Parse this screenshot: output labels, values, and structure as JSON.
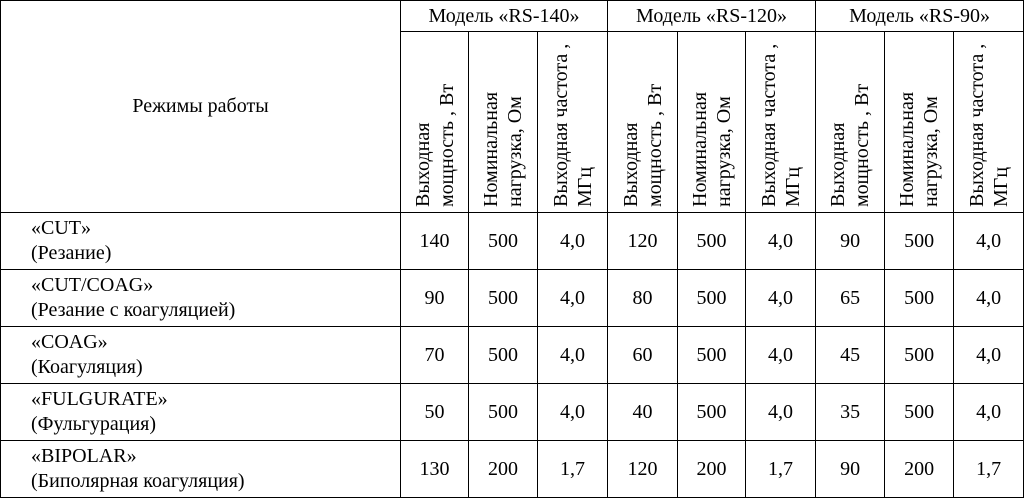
{
  "header": {
    "corner": "Режимы работы",
    "models": [
      "Модель «RS-140»",
      "Модель «RS-120»",
      "Модель «RS-90»"
    ],
    "columns": [
      "Выходная мощность , Вт",
      "Номинальная нагрузка, Ом",
      "Выходная частота , МГц"
    ]
  },
  "rows": [
    {
      "name": "«CUT»",
      "desc": "(Резание)",
      "values": [
        "140",
        "500",
        "4,0",
        "120",
        "500",
        "4,0",
        "90",
        "500",
        "4,0"
      ]
    },
    {
      "name": "«CUT/COAG»",
      "desc": "(Резание с коагуляцией)",
      "values": [
        "90",
        "500",
        "4,0",
        "80",
        "500",
        "4,0",
        "65",
        "500",
        "4,0"
      ]
    },
    {
      "name": "«COAG»",
      "desc": "(Коагуляция)",
      "values": [
        "70",
        "500",
        "4,0",
        "60",
        "500",
        "4,0",
        "45",
        "500",
        "4,0"
      ]
    },
    {
      "name": "«FULGURATE»",
      "desc": "(Фульгурация)",
      "values": [
        "50",
        "500",
        "4,0",
        "40",
        "500",
        "4,0",
        "35",
        "500",
        "4,0"
      ]
    },
    {
      "name": "«BIPOLAR»",
      "desc": "(Биполярная коагуляция)",
      "values": [
        "130",
        "200",
        "1,7",
        "120",
        "200",
        "1,7",
        "90",
        "200",
        "1,7"
      ]
    }
  ]
}
